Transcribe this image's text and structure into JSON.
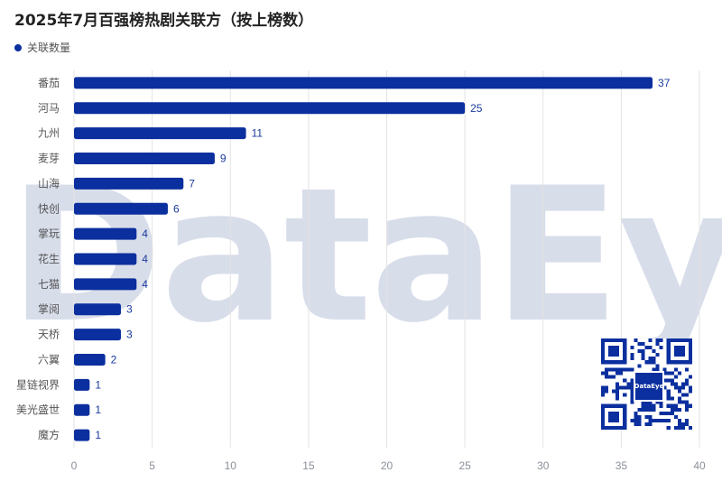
{
  "chart_data": {
    "type": "bar",
    "orientation": "horizontal",
    "title": "2025年7月百强榜热剧关联方（按上榜数）",
    "legend": {
      "placement": "top-left",
      "entries": [
        "关联数量"
      ]
    },
    "series": [
      {
        "name": "关联数量",
        "color": "#0b2f9e",
        "values": [
          37,
          25,
          11,
          9,
          7,
          6,
          4,
          4,
          4,
          3,
          3,
          2,
          1,
          1,
          1
        ]
      }
    ],
    "categories": [
      "番茄",
      "河马",
      "九州",
      "麦芽",
      "山海",
      "快创",
      "掌玩",
      "花生",
      "七猫",
      "掌阅",
      "天桥",
      "六翼",
      "星链视界",
      "美光盛世",
      "魔方"
    ],
    "xlim": [
      0,
      40
    ],
    "xticks": [
      0,
      5,
      10,
      15,
      20,
      25,
      30,
      35,
      40
    ],
    "grid": "vertical"
  },
  "watermark": {
    "text": "DataEye"
  },
  "qr": {
    "logo_text": "DataEye"
  }
}
